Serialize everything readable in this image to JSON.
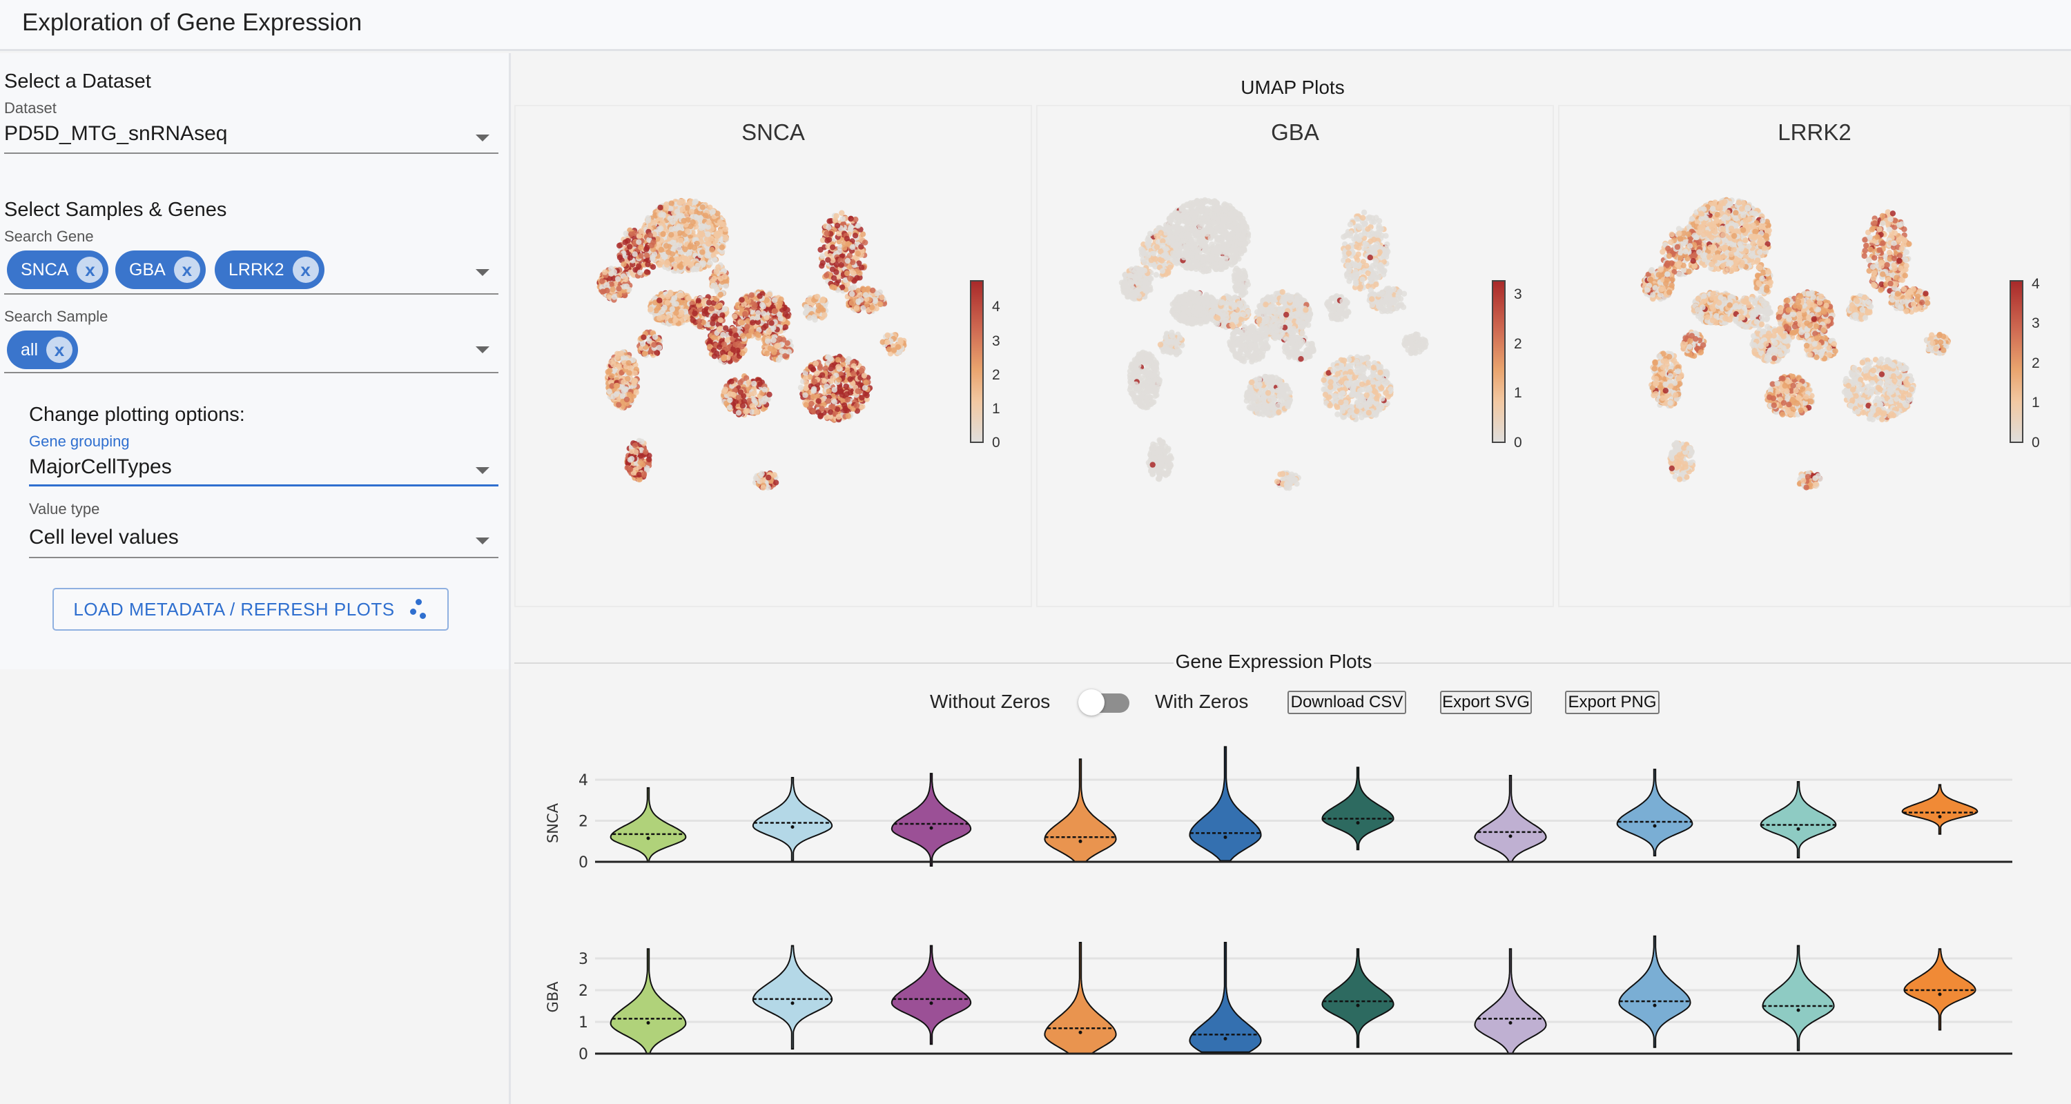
{
  "app": {
    "title": "Exploration of Gene Expression"
  },
  "sidebar": {
    "dataset_section": "Select a Dataset",
    "dataset_label": "Dataset",
    "dataset_value": "PD5D_MTG_snRNAseq",
    "samples_genes_section": "Select Samples & Genes",
    "gene_search_label": "Search Gene",
    "genes": [
      {
        "label": "SNCA"
      },
      {
        "label": "GBA"
      },
      {
        "label": "LRRK2"
      }
    ],
    "sample_search_label": "Search Sample",
    "samples": [
      {
        "label": "all"
      }
    ],
    "plotting_section": "Change plotting options:",
    "gene_grouping_label": "Gene grouping",
    "gene_grouping_value": "MajorCellTypes",
    "value_type_label": "Value type",
    "value_type_value": "Cell level values",
    "load_button": "LOAD METADATA / REFRESH PLOTS",
    "remove_icon": "x",
    "accent": "#3a75cc"
  },
  "umap": {
    "title": "UMAP Plots",
    "panels": [
      {
        "gene": "SNCA",
        "colorbar_ticks": [
          "0",
          "1",
          "2",
          "3",
          "4"
        ],
        "colorbar_max": 4.8,
        "intensity": 0.55
      },
      {
        "gene": "GBA",
        "colorbar_ticks": [
          "0",
          "1",
          "2",
          "3"
        ],
        "colorbar_max": 3.3,
        "intensity": 0.12
      },
      {
        "gene": "LRRK2",
        "colorbar_ticks": [
          "0",
          "1",
          "2",
          "3",
          "4"
        ],
        "colorbar_max": 4.1,
        "intensity": 0.35
      }
    ],
    "colorscale": [
      "#e0dedb",
      "#f2c8a2",
      "#e9a46e",
      "#cf6a52",
      "#a92a2a"
    ]
  },
  "gene_expression": {
    "title": "Gene Expression Plots",
    "toggle_left": "Without Zeros",
    "toggle_right": "With Zeros",
    "toggle_on": false,
    "buttons": [
      "Download CSV",
      "Export SVG",
      "Export PNG"
    ]
  },
  "chart_data": {
    "type": "violin",
    "group_colors": [
      "#b0d27a",
      "#b4d8e7",
      "#9b5096",
      "#e9944f",
      "#3470b0",
      "#2d6a60",
      "#bfb0d2",
      "#7aaed4",
      "#8ecbc3",
      "#f08a36"
    ],
    "series": [
      {
        "name": "SNCA",
        "ylabel": "SNCA",
        "yticks": [
          "0",
          "2",
          "4"
        ],
        "ylim": [
          0,
          4.9
        ],
        "violins": [
          {
            "min": 0.0,
            "max": 3.6,
            "mode": 1.2,
            "median": 1.35,
            "width": 0.9
          },
          {
            "min": 0.05,
            "max": 4.1,
            "mode": 1.75,
            "median": 1.9,
            "width": 0.95
          },
          {
            "min": -0.2,
            "max": 4.3,
            "mode": 1.6,
            "median": 1.85,
            "width": 0.95
          },
          {
            "min": 0.0,
            "max": 5.0,
            "mode": 1.1,
            "median": 1.2,
            "width": 0.85
          },
          {
            "min": 0.05,
            "max": 5.6,
            "mode": 1.3,
            "median": 1.4,
            "width": 0.85
          },
          {
            "min": 0.6,
            "max": 4.6,
            "mode": 2.1,
            "median": 2.1,
            "width": 0.85
          },
          {
            "min": 0.0,
            "max": 4.2,
            "mode": 1.2,
            "median": 1.45,
            "width": 0.85
          },
          {
            "min": 0.3,
            "max": 4.5,
            "mode": 1.85,
            "median": 1.95,
            "width": 0.9
          },
          {
            "min": 0.2,
            "max": 3.9,
            "mode": 1.8,
            "median": 1.8,
            "width": 0.9
          },
          {
            "min": 1.35,
            "max": 3.75,
            "mode": 2.45,
            "median": 2.4,
            "width": 0.9
          }
        ]
      },
      {
        "name": "GBA",
        "ylabel": "GBA",
        "yticks": [
          "0",
          "1",
          "2",
          "3"
        ],
        "ylim": [
          0,
          3.6
        ],
        "violins": [
          {
            "min": 0.0,
            "max": 3.3,
            "mode": 0.95,
            "median": 1.1,
            "width": 0.9
          },
          {
            "min": 0.15,
            "max": 3.4,
            "mode": 1.7,
            "median": 1.72,
            "width": 0.95
          },
          {
            "min": 0.3,
            "max": 3.4,
            "mode": 1.6,
            "median": 1.72,
            "width": 0.95
          },
          {
            "min": 0.0,
            "max": 3.5,
            "mode": 0.6,
            "median": 0.8,
            "width": 0.85
          },
          {
            "min": 0.05,
            "max": 3.5,
            "mode": 0.4,
            "median": 0.6,
            "width": 0.85
          },
          {
            "min": 0.2,
            "max": 3.3,
            "mode": 1.55,
            "median": 1.65,
            "width": 0.85
          },
          {
            "min": 0.0,
            "max": 3.3,
            "mode": 0.9,
            "median": 1.1,
            "width": 0.85
          },
          {
            "min": 0.2,
            "max": 3.7,
            "mode": 1.6,
            "median": 1.65,
            "width": 0.85
          },
          {
            "min": 0.1,
            "max": 3.4,
            "mode": 1.5,
            "median": 1.5,
            "width": 0.85
          },
          {
            "min": 0.75,
            "max": 3.3,
            "mode": 2.0,
            "median": 2.0,
            "width": 0.85
          }
        ]
      }
    ]
  }
}
